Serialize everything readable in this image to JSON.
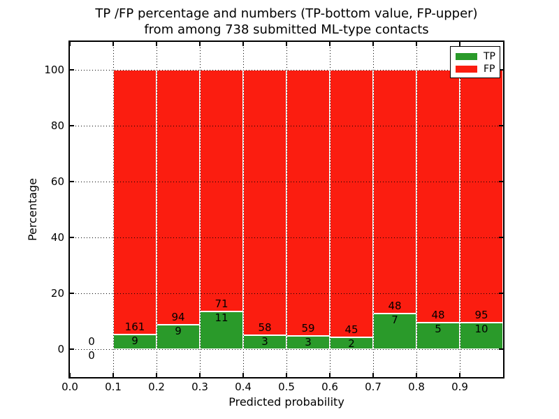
{
  "title": {
    "line1": "TP /FP percentage and numbers (TP-bottom value, FP-upper)",
    "line2": "from among 738 submitted ML-type contacts"
  },
  "axes": {
    "xlabel": "Predicted probability",
    "ylabel": "Percentage"
  },
  "legend": {
    "items": [
      {
        "label": "TP",
        "color": "#2a9a2a"
      },
      {
        "label": "FP",
        "color": "#fb1d10"
      }
    ]
  },
  "colors": {
    "tp": "#2a9a2a",
    "fp": "#fb1d10",
    "grid": "#000000",
    "text": "#000000",
    "background": "#ffffff"
  },
  "chart_data": {
    "type": "bar",
    "stacked": true,
    "unit": "percent",
    "title": "TP /FP percentage and numbers (TP-bottom value, FP-upper) from among 738 submitted ML-type contacts",
    "xlabel": "Predicted probability",
    "ylabel": "Percentage",
    "xlim": [
      0.0,
      1.0
    ],
    "ylim": [
      -10,
      110
    ],
    "xticks": [
      "0.0",
      "0.1",
      "0.2",
      "0.3",
      "0.4",
      "0.5",
      "0.6",
      "0.7",
      "0.8",
      "0.9"
    ],
    "yticks": [
      0,
      20,
      40,
      60,
      80,
      100
    ],
    "grid": "dotted",
    "legend_position": "upper-right",
    "total_contacts": 738,
    "series": [
      {
        "name": "TP",
        "color": "#2a9a2a",
        "counts": [
          0,
          9,
          9,
          11,
          3,
          3,
          2,
          7,
          5,
          10
        ]
      },
      {
        "name": "FP",
        "color": "#fb1d10",
        "counts": [
          0,
          161,
          94,
          71,
          58,
          59,
          45,
          48,
          48,
          95
        ]
      }
    ],
    "bins": [
      {
        "x_start": 0.0,
        "x_end": 0.1,
        "tp": 0,
        "fp": 0,
        "tp_pct": 0,
        "fp_pct": 0
      },
      {
        "x_start": 0.1,
        "x_end": 0.2,
        "tp": 9,
        "fp": 161,
        "tp_pct": 5.29,
        "fp_pct": 94.71
      },
      {
        "x_start": 0.2,
        "x_end": 0.3,
        "tp": 9,
        "fp": 94,
        "tp_pct": 8.74,
        "fp_pct": 91.26
      },
      {
        "x_start": 0.3,
        "x_end": 0.4,
        "tp": 11,
        "fp": 71,
        "tp_pct": 13.41,
        "fp_pct": 86.59
      },
      {
        "x_start": 0.4,
        "x_end": 0.5,
        "tp": 3,
        "fp": 58,
        "tp_pct": 4.92,
        "fp_pct": 95.08
      },
      {
        "x_start": 0.5,
        "x_end": 0.6,
        "tp": 3,
        "fp": 59,
        "tp_pct": 4.84,
        "fp_pct": 95.16
      },
      {
        "x_start": 0.6,
        "x_end": 0.7,
        "tp": 2,
        "fp": 45,
        "tp_pct": 4.26,
        "fp_pct": 95.74
      },
      {
        "x_start": 0.7,
        "x_end": 0.8,
        "tp": 7,
        "fp": 48,
        "tp_pct": 12.73,
        "fp_pct": 87.27
      },
      {
        "x_start": 0.8,
        "x_end": 0.9,
        "tp": 5,
        "fp": 48,
        "tp_pct": 9.43,
        "fp_pct": 90.57
      },
      {
        "x_start": 0.9,
        "x_end": 1.0,
        "tp": 10,
        "fp": 95,
        "tp_pct": 9.52,
        "fp_pct": 90.48
      }
    ]
  }
}
